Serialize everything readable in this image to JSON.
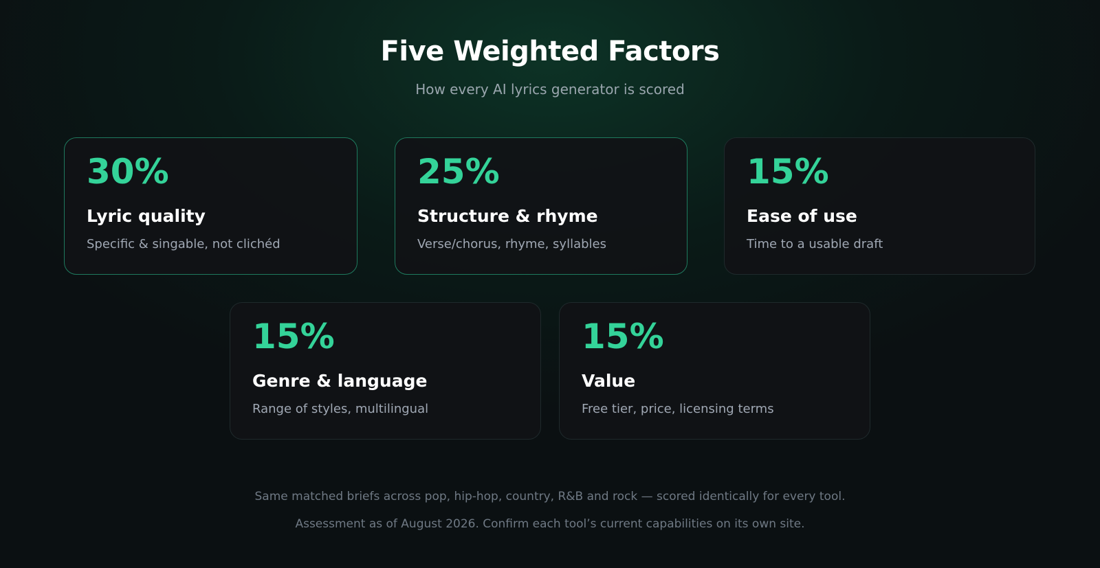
{
  "header": {
    "title": "Five Weighted Factors",
    "subtitle": "How every AI lyrics generator is scored"
  },
  "cards": [
    {
      "percent": "30%",
      "title": "Lyric quality",
      "description": "Specific & singable, not clichéd"
    },
    {
      "percent": "25%",
      "title": "Structure & rhyme",
      "description": "Verse/chorus, rhyme, syllables"
    },
    {
      "percent": "15%",
      "title": "Ease of use",
      "description": "Time to a usable draft"
    },
    {
      "percent": "15%",
      "title": "Genre & language",
      "description": "Range of styles, multilingual"
    },
    {
      "percent": "15%",
      "title": "Value",
      "description": "Free tier, price, licensing terms"
    }
  ],
  "footer": {
    "note": "Same matched briefs across pop, hip-hop, country, R&B and rock — scored identically for every tool.",
    "disclaimer": "Assessment as of August 2026. Confirm each tool’s current capabilities on its own site."
  }
}
